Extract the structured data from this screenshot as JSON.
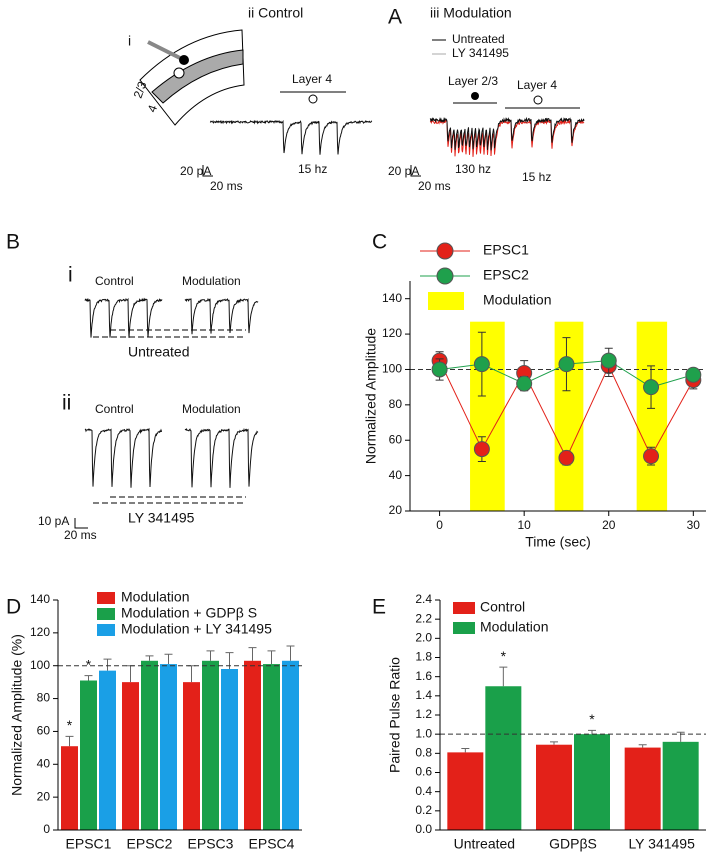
{
  "panels": {
    "A": {
      "letter": "A",
      "control_label": "ii Control",
      "modulation_label": "iii Modulation",
      "schematic_label": "i",
      "layer23": "2/3",
      "layer4": "4",
      "legend": [
        "Untreated",
        "LY 341495"
      ],
      "control_layer": "Layer 4",
      "control_freq": "15 hz",
      "control_scale_pa": "20 pA",
      "control_scale_ms": "20 ms",
      "mod_layer23": "Layer 2/3",
      "mod_layer4": "Layer 4",
      "mod_freq1": "130 hz",
      "mod_freq2": "15 hz",
      "mod_scale_pa": "20 pA",
      "mod_scale_ms": "20 ms"
    },
    "B": {
      "letter": "B",
      "i_label": "i",
      "i_control": "Control",
      "i_modulation": "Modulation",
      "i_caption": "Untreated",
      "ii_label": "ii",
      "ii_control": "Control",
      "ii_modulation": "Modulation",
      "ii_caption": "LY 341495",
      "scale_pa": "10 pA",
      "scale_ms": "20 ms"
    }
  },
  "chart_data": [
    {
      "type": "line",
      "panel": "C",
      "xlabel": "Time (sec)",
      "ylabel": "Normalized Amplitude",
      "xlim": [
        -3.5,
        31.5
      ],
      "ylim": [
        20,
        150
      ],
      "xticks": [
        0,
        10,
        20,
        30
      ],
      "yticks": [
        20,
        40,
        60,
        80,
        100,
        120,
        140
      ],
      "refline": 100,
      "legend": "upper left",
      "span_name": "Modulation",
      "span_color": "#ffff00",
      "spans": [
        [
          3.6,
          7.7
        ],
        [
          13.6,
          17
        ],
        [
          23.3,
          26.9
        ]
      ],
      "span_top": 127,
      "x": [
        0,
        5,
        10,
        15,
        20,
        25,
        30
      ],
      "series": [
        {
          "name": "EPSC1",
          "color": "#e32119",
          "values": [
            105,
            55,
            98,
            50,
            102,
            51,
            94
          ],
          "errors": [
            5,
            7,
            7,
            4,
            6,
            5,
            5
          ]
        },
        {
          "name": "EPSC2",
          "color": "#1fa04c",
          "values": [
            100,
            103,
            92,
            103,
            105,
            90,
            97
          ],
          "errors": [
            6,
            18,
            4,
            15,
            7,
            12,
            3
          ]
        }
      ]
    },
    {
      "type": "bar",
      "panel": "D",
      "ylabel": "Normalized Amplitude (%)",
      "ylim": [
        0,
        140
      ],
      "yticks": [
        0,
        20,
        40,
        60,
        80,
        100,
        120,
        140
      ],
      "refline": 100,
      "legend": "upper left",
      "categories": [
        "EPSC1",
        "EPSC2",
        "EPSC3",
        "EPSC4"
      ],
      "series": [
        {
          "name": "Modulation",
          "color": "#e32119",
          "values": [
            51,
            90,
            90,
            103
          ],
          "errors": [
            6,
            10,
            10,
            8
          ]
        },
        {
          "name": "Modulation + GDPβ S",
          "color": "#1aa04a",
          "values": [
            91,
            103,
            103,
            101
          ],
          "errors": [
            3,
            3,
            6,
            8
          ]
        },
        {
          "name": "Modulation + LY 341495",
          "color": "#1a9fe6",
          "values": [
            97,
            101,
            98,
            103
          ],
          "errors": [
            7,
            6,
            10,
            9
          ]
        }
      ],
      "annotations": [
        {
          "text": "*",
          "category": "EPSC1",
          "series": "Modulation"
        },
        {
          "text": "*",
          "category": "EPSC1",
          "series": "Modulation + GDPβ S"
        }
      ]
    },
    {
      "type": "bar",
      "panel": "E",
      "ylabel": "Paired Pulse Ratio",
      "ylim": [
        0,
        2.4
      ],
      "yticks": [
        {
          "value": 0,
          "label": "0.0"
        },
        0.2,
        0.4,
        0.6,
        0.8,
        {
          "value": 1,
          "label": "1.0"
        },
        1.2,
        1.4,
        1.6,
        1.8,
        {
          "value": 2,
          "label": "2.0"
        },
        2.2,
        2.4
      ],
      "refline": 1,
      "legend": "upper left",
      "categories": [
        "Untreated",
        "GDPβS",
        "LY 341495"
      ],
      "series": [
        {
          "name": "Control",
          "color": "#e32119",
          "values": [
            0.81,
            0.89,
            0.86
          ],
          "errors": [
            0.04,
            0.03,
            0.03
          ]
        },
        {
          "name": "Modulation",
          "color": "#1aa04a",
          "values": [
            1.5,
            1.0,
            0.92
          ],
          "errors": [
            0.2,
            0.04,
            0.1
          ]
        }
      ],
      "annotations": [
        {
          "text": "*",
          "category": "Untreated",
          "series": "Modulation"
        },
        {
          "text": "*",
          "category": "GDPβS",
          "series": "Modulation"
        }
      ]
    }
  ]
}
